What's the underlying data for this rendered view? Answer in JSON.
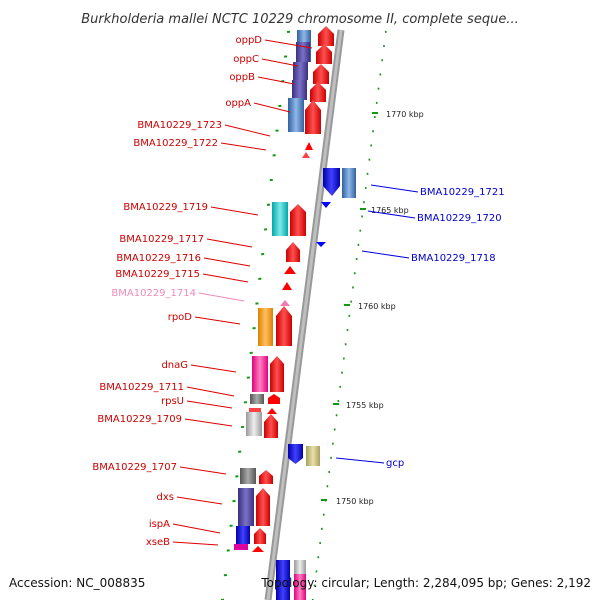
{
  "title": "Burkholderia mallei NCTC 10229 chromosome II, complete seque...",
  "footer": {
    "accession": "Accession: NC_008835",
    "topology": "Topology: circular; Length: 2,284,095 bp; Genes: 2,192"
  },
  "colors": {
    "forward_label": "#cc0000",
    "reverse_label": "#0000cc",
    "faded_label": "#f08ab8",
    "cds_forward": "#ff0000",
    "cds_reverse": "#0000ff",
    "backbone": "#999999",
    "tick": "#119911"
  },
  "scale_ticks": [
    {
      "label": "1770 kbp"
    },
    {
      "label": "1765 kbp"
    },
    {
      "label": "1760 kbp"
    },
    {
      "label": "1755 kbp"
    },
    {
      "label": "1750 kbp"
    }
  ],
  "features_left": [
    {
      "name": "oppD"
    },
    {
      "name": "oppC"
    },
    {
      "name": "oppB"
    },
    {
      "name": "oppA"
    },
    {
      "name": "BMA10229_1723"
    },
    {
      "name": "BMA10229_1722"
    },
    {
      "name": "BMA10229_1719"
    },
    {
      "name": "BMA10229_1717"
    },
    {
      "name": "BMA10229_1716"
    },
    {
      "name": "BMA10229_1715"
    },
    {
      "name": "BMA10229_1714"
    },
    {
      "name": "rpoD"
    },
    {
      "name": "dnaG"
    },
    {
      "name": "BMA10229_1711"
    },
    {
      "name": "rpsU"
    },
    {
      "name": "BMA10229_1709"
    },
    {
      "name": "BMA10229_1707"
    },
    {
      "name": "dxs"
    },
    {
      "name": "ispA"
    },
    {
      "name": "xseB"
    }
  ],
  "features_right": [
    {
      "name": "BMA10229_1721"
    },
    {
      "name": "BMA10229_1720"
    },
    {
      "name": "BMA10229_1718"
    },
    {
      "name": "gcp"
    }
  ]
}
